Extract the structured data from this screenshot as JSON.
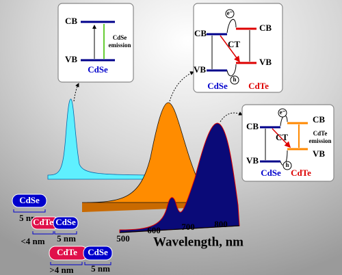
{
  "panels": [
    {
      "cb": "CB",
      "vb": "VB",
      "emission": [
        "CdSe",
        "emission"
      ],
      "material": "CdSe"
    },
    {
      "cb_left": "CB",
      "cb_right": "CB",
      "ct": "CT",
      "vb_left": "VB",
      "vb_right": "VB",
      "electron": "e⁻",
      "hole": "h",
      "material_left": "CdSe",
      "material_right": "CdTe"
    },
    {
      "cb_left": "CB",
      "cb_right": "CB",
      "ct": "CT",
      "emission": [
        "CdTe",
        "emission"
      ],
      "vb_left": "VB",
      "vb_right": "VB",
      "electron": "e⁻",
      "hole": "h",
      "material_left": "CdSe",
      "material_right": "CdTe"
    }
  ],
  "axis": {
    "title": "Wavelength, nm",
    "ticks": [
      "500",
      "600",
      "700",
      "800"
    ]
  },
  "samples": [
    {
      "core": "CdSe",
      "core_size": "5 nm"
    },
    {
      "shell": "CdTe",
      "core": "CdSe",
      "shell_size": "<4 nm",
      "core_size": "5 nm"
    },
    {
      "shell": "CdTe",
      "core": "CdSe",
      "shell_size": ">4 nm",
      "core_size": "5 nm"
    }
  ]
}
